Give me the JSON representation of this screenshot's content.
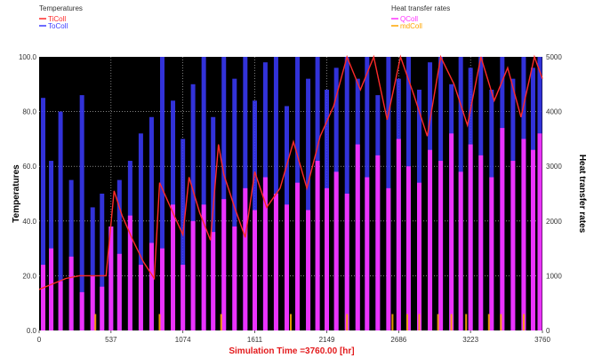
{
  "chart_data": {
    "type": "line",
    "xlabel": "Simulation Time =3760.00 [hr]",
    "ylabel_left": "Temperatures",
    "ylabel_right": "Heat transfer rates",
    "xlim": [
      0,
      3760
    ],
    "ylim_left": [
      0,
      100
    ],
    "ylim_right": [
      0,
      5000
    ],
    "x_ticks": [
      "0",
      "537",
      "1074",
      "1611",
      "2149",
      "2686",
      "3223",
      "3760"
    ],
    "y_ticks_left": [
      "0.0",
      "20.0",
      "40.0",
      "60.0",
      "80.0",
      "100.0"
    ],
    "y_ticks_right": [
      "0",
      "1000",
      "2000",
      "3000",
      "4000",
      "5000"
    ],
    "grid": true,
    "background": "#000000",
    "legend_left": {
      "title": "Temperatures",
      "entries": [
        {
          "name": "TiColl",
          "color": "#ff2a2a"
        },
        {
          "name": "ToColl",
          "color": "#3b3bff"
        }
      ]
    },
    "legend_right": {
      "title": "Heat transfer rates",
      "entries": [
        {
          "name": "QColl",
          "color": "#ff33ff"
        },
        {
          "name": "mdColl",
          "color": "#ffa500"
        }
      ]
    },
    "series": [
      {
        "name": "ToColl",
        "axis": "left",
        "style": "spikes",
        "color": "#3b3bff",
        "x": [
          30,
          90,
          160,
          240,
          320,
          400,
          470,
          537,
          600,
          680,
          760,
          840,
          920,
          1000,
          1074,
          1150,
          1230,
          1300,
          1380,
          1460,
          1540,
          1611,
          1690,
          1770,
          1850,
          1930,
          2010,
          2080,
          2149,
          2220,
          2300,
          2380,
          2450,
          2530,
          2610,
          2686,
          2760,
          2840,
          2920,
          3000,
          3080,
          3150,
          3223,
          3300,
          3380,
          3460,
          3540,
          3620,
          3690,
          3740
        ],
        "y": [
          85,
          62,
          80,
          55,
          86,
          45,
          50,
          38,
          55,
          62,
          72,
          78,
          100,
          84,
          70,
          90,
          100,
          78,
          100,
          92,
          100,
          84,
          98,
          100,
          82,
          100,
          92,
          100,
          88,
          96,
          100,
          92,
          100,
          86,
          100,
          92,
          100,
          88,
          98,
          100,
          90,
          100,
          96,
          100,
          88,
          100,
          92,
          100,
          96,
          100
        ]
      },
      {
        "name": "QColl",
        "axis": "right",
        "style": "spikes",
        "color": "#ff33ff",
        "x": [
          30,
          90,
          160,
          240,
          320,
          400,
          470,
          537,
          600,
          680,
          760,
          840,
          920,
          1000,
          1074,
          1150,
          1230,
          1300,
          1380,
          1460,
          1540,
          1611,
          1690,
          1770,
          1850,
          1930,
          2010,
          2080,
          2149,
          2220,
          2300,
          2380,
          2450,
          2530,
          2610,
          2686,
          2760,
          2840,
          2920,
          3000,
          3080,
          3150,
          3223,
          3300,
          3380,
          3460,
          3540,
          3620,
          3690,
          3740
        ],
        "y": [
          1200,
          1500,
          900,
          1350,
          700,
          1000,
          800,
          1900,
          1400,
          2100,
          1200,
          1600,
          1500,
          2300,
          1200,
          2000,
          2300,
          1800,
          2400,
          1900,
          2600,
          2200,
          2800,
          2500,
          2300,
          2700,
          2200,
          3100,
          2600,
          2900,
          2500,
          3400,
          2800,
          3200,
          2600,
          3500,
          3000,
          2700,
          3300,
          3100,
          3600,
          2900,
          3400,
          3200,
          2800,
          3700,
          3100,
          3500,
          3300,
          3600
        ]
      },
      {
        "name": "mdColl",
        "axis": "right",
        "style": "spikes",
        "color": "#ffa500",
        "x": [
          420,
          900,
          1360,
          1880,
          2300,
          2640,
          2750,
          2840,
          2980,
          3080,
          3190,
          3360,
          3450,
          3620
        ],
        "y": [
          300,
          300,
          300,
          300,
          300,
          300,
          300,
          300,
          300,
          300,
          300,
          300,
          300,
          300
        ]
      },
      {
        "name": "TiColl",
        "axis": "left",
        "style": "line",
        "color": "#ff2a2a",
        "x": [
          0,
          100,
          200,
          300,
          400,
          500,
          560,
          620,
          700,
          780,
          860,
          900,
          1000,
          1074,
          1120,
          1200,
          1280,
          1340,
          1380,
          1460,
          1540,
          1611,
          1700,
          1800,
          1900,
          2000,
          2100,
          2200,
          2300,
          2400,
          2500,
          2600,
          2700,
          2800,
          2900,
          3000,
          3100,
          3200,
          3300,
          3400,
          3500,
          3600,
          3700,
          3760
        ],
        "y": [
          15,
          17,
          19,
          20,
          20,
          20,
          51,
          42,
          33,
          25,
          19,
          54,
          43,
          35,
          56,
          43,
          33,
          68,
          57,
          45,
          34,
          58,
          45,
          52,
          69,
          52,
          71,
          82,
          100,
          88,
          100,
          77,
          100,
          86,
          71,
          100,
          90,
          75,
          100,
          84,
          96,
          78,
          100,
          92
        ]
      }
    ]
  }
}
